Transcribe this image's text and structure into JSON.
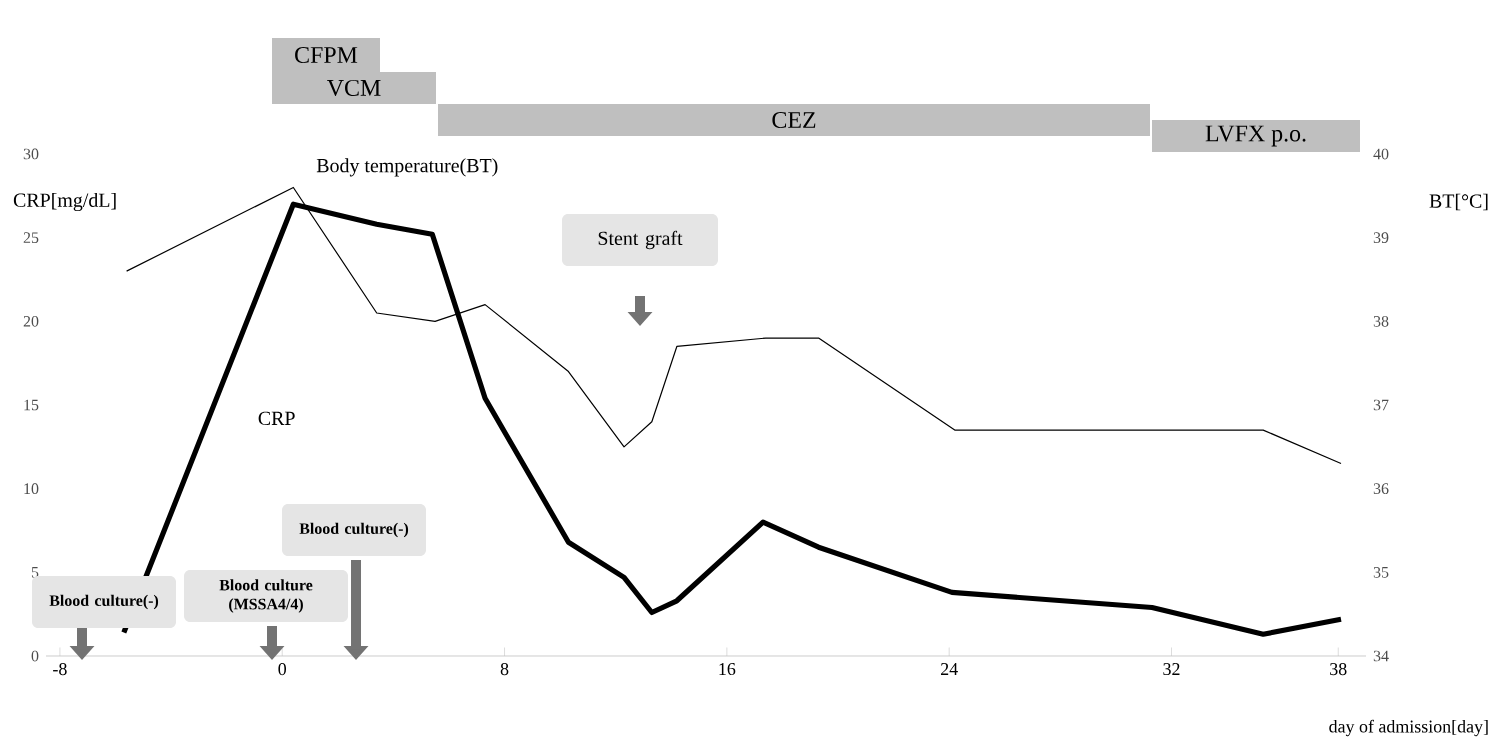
{
  "chart_data": {
    "type": "line",
    "xlabel": "day of admission[day]",
    "ylabel": "CRP[mg/dL]",
    "y2label": "BT[°C]",
    "xlim": [
      -8.5,
      39
    ],
    "xticks": [
      -8,
      0,
      8,
      16,
      24,
      32,
      38
    ],
    "ylim": [
      0,
      30
    ],
    "yticks": [
      0,
      5,
      10,
      15,
      20,
      25,
      30
    ],
    "y2lim": [
      34,
      40
    ],
    "y2ticks": [
      34,
      35,
      36,
      37,
      38,
      39,
      40
    ],
    "series": [
      {
        "name": "CRP",
        "color": "#000000",
        "x": [
          -5.7,
          0.4,
          3.4,
          5.4,
          7.3,
          10.3,
          12.3,
          13.3,
          14.2,
          17.3,
          19.3,
          24.1,
          31.3,
          35.3,
          38.1
        ],
        "values": [
          1.4,
          27.0,
          25.8,
          25.2,
          15.4,
          6.8,
          4.7,
          2.6,
          3.3,
          8.0,
          6.5,
          3.8,
          2.9,
          1.3,
          2.2
        ]
      },
      {
        "name": "Body temperature(BT)",
        "color": "#000000",
        "axis": "y2",
        "x": [
          -5.6,
          0.4,
          3.4,
          5.5,
          7.3,
          10.3,
          12.3,
          13.3,
          14.2,
          17.4,
          19.3,
          24.2,
          35.3,
          38.1
        ],
        "values": [
          38.6,
          39.6,
          38.1,
          38.0,
          38.2,
          37.4,
          36.5,
          36.8,
          37.7,
          37.8,
          37.8,
          36.7,
          36.7,
          36.3
        ]
      }
    ],
    "annotations": [
      "CFPM",
      "VCM",
      "CEZ",
      "LVFX p.o.",
      "Stent graft",
      "Blood culture(-)",
      "Blood culture (MSSA4/4)",
      "Blood culture(-)"
    ],
    "grid": false,
    "legend": false,
    "marker": "none",
    "line_style": "solid"
  }
}
